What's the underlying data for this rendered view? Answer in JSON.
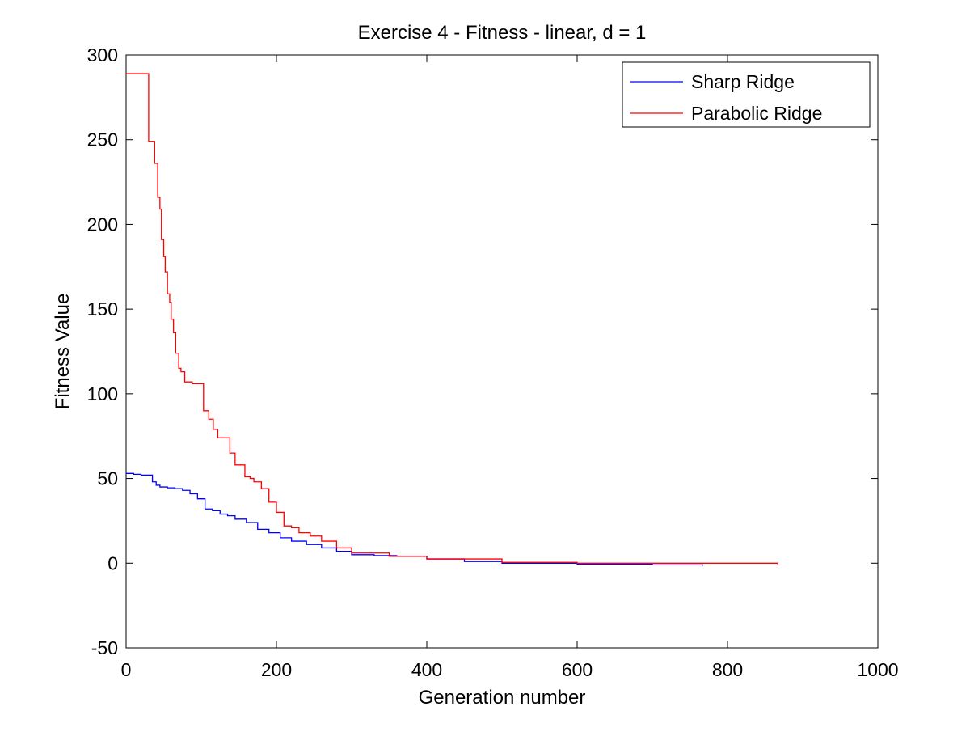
{
  "chart_data": {
    "type": "line",
    "title": "Exercise 4 - Fitness - linear, d = 1",
    "xlabel": "Generation number",
    "ylabel": "Fitness Value",
    "xlim": [
      0,
      1000
    ],
    "ylim": [
      -50,
      300
    ],
    "xticks": [
      0,
      200,
      400,
      600,
      800,
      1000
    ],
    "xtick_labels": [
      "0",
      "200",
      "400",
      "600",
      "800",
      "1000"
    ],
    "yticks": [
      -50,
      0,
      50,
      100,
      150,
      200,
      250,
      300
    ],
    "ytick_labels": [
      "-50",
      "0",
      "50",
      "100",
      "150",
      "200",
      "250",
      "300"
    ],
    "grid": false,
    "legend_position": "top-right",
    "series": [
      {
        "name": "Sharp Ridge",
        "color": "#0000ff",
        "step": true,
        "x": [
          0,
          10,
          20,
          35,
          40,
          45,
          55,
          65,
          75,
          85,
          95,
          105,
          115,
          125,
          135,
          145,
          160,
          175,
          190,
          205,
          220,
          240,
          260,
          280,
          300,
          330,
          360,
          400,
          450,
          500,
          600,
          700,
          767
        ],
        "y": [
          53,
          52.5,
          52,
          48,
          46,
          45,
          44.5,
          44,
          43,
          41,
          38,
          32,
          31,
          29,
          28,
          26,
          24,
          20,
          18,
          15,
          13,
          11,
          9,
          7,
          5,
          4.5,
          4,
          2.5,
          1,
          0,
          -0.5,
          -1,
          -1.5
        ]
      },
      {
        "name": "Parabolic Ridge",
        "color": "#ff0000",
        "step": true,
        "x": [
          0,
          28,
          30,
          38,
          42,
          45,
          47,
          50,
          52,
          55,
          58,
          60,
          63,
          66,
          70,
          73,
          78,
          82,
          88,
          95,
          103,
          110,
          116,
          122,
          130,
          138,
          145,
          150,
          158,
          165,
          170,
          180,
          190,
          200,
          210,
          220,
          230,
          245,
          260,
          280,
          300,
          350,
          400,
          500,
          600,
          700,
          867
        ],
        "y": [
          289,
          289,
          249,
          236,
          216,
          209,
          191,
          181,
          172,
          159,
          154,
          144,
          136,
          124,
          115,
          113,
          107,
          107,
          106,
          106,
          90,
          85,
          79,
          74,
          74,
          65,
          58,
          58,
          51,
          50,
          48,
          44,
          36,
          30,
          22,
          21,
          18,
          16,
          13,
          9,
          6,
          4,
          2.5,
          0.5,
          0,
          0,
          -1
        ]
      }
    ]
  }
}
